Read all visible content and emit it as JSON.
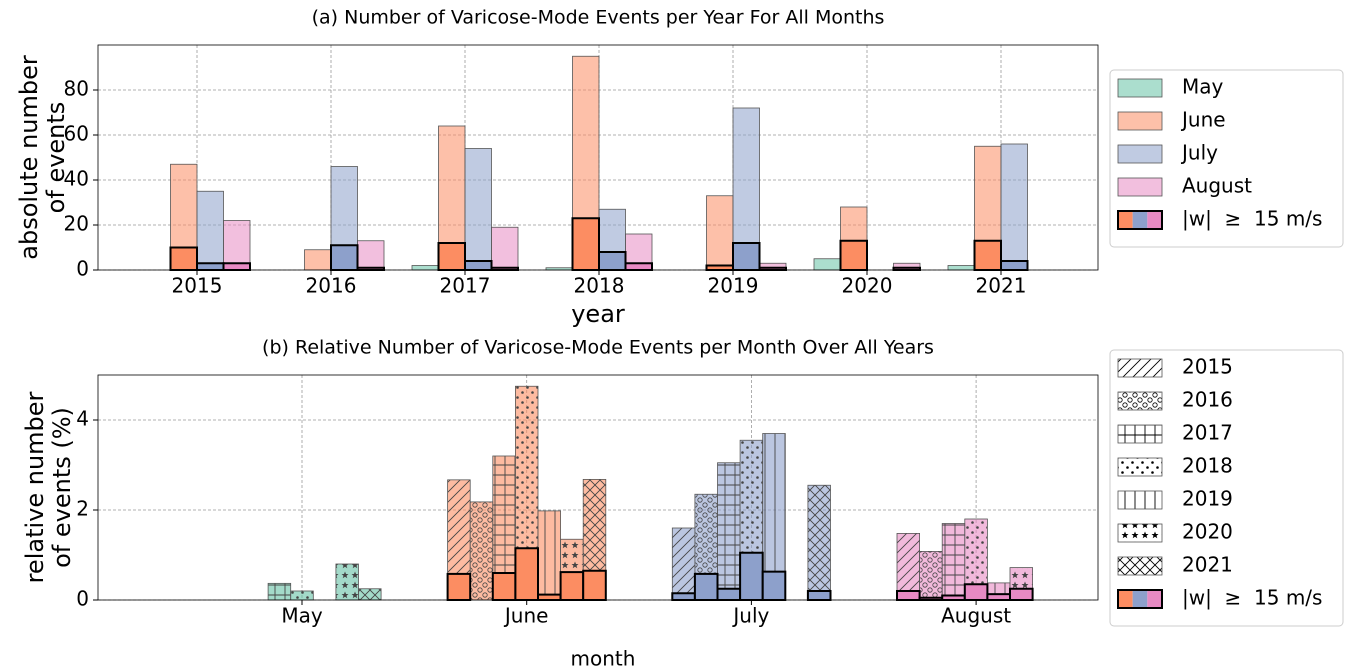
{
  "chart_data": [
    {
      "type": "bar",
      "title": "(a) Number of Varicose-Mode Events per Year For All Months",
      "xlabel": "year",
      "ylabel": [
        "absolute number",
        "of events"
      ],
      "categories": [
        "2015",
        "2016",
        "2017",
        "2018",
        "2019",
        "2020",
        "2021"
      ],
      "ylim": [
        0,
        100
      ],
      "yticks": [
        0,
        20,
        40,
        60,
        80
      ],
      "grid": true,
      "overlay_name": "|w|  ≥  15 m/s",
      "series": [
        {
          "name": "May",
          "color": "#66c2a5",
          "values": [
            0,
            0,
            2,
            1,
            0,
            5,
            2
          ],
          "overlay_values": [
            0,
            0,
            0,
            0,
            0,
            0,
            0
          ]
        },
        {
          "name": "June",
          "color": "#fc8d62",
          "values": [
            47,
            9,
            64,
            95,
            33,
            28,
            55
          ],
          "overlay_values": [
            10,
            0,
            12,
            23,
            2,
            13,
            13
          ]
        },
        {
          "name": "July",
          "color": "#8da0cb",
          "values": [
            35,
            46,
            54,
            27,
            72,
            0,
            56
          ],
          "overlay_values": [
            3,
            11,
            4,
            8,
            12,
            0,
            4
          ]
        },
        {
          "name": "August",
          "color": "#e78ac3",
          "values": [
            22,
            13,
            19,
            16,
            3,
            3,
            0
          ],
          "overlay_values": [
            3,
            1,
            1,
            3,
            1,
            1,
            0
          ]
        }
      ]
    },
    {
      "type": "hatched_bar",
      "title": "(b) Relative Number of Varicose-Mode Events per Month Over All Years",
      "xlabel": "month",
      "ylabel": [
        "relative number",
        "of events (%)"
      ],
      "categories": [
        "May",
        "June",
        "July",
        "August"
      ],
      "colors": [
        "#66c2a5",
        "#fc8d62",
        "#8da0cb",
        "#e78ac3"
      ],
      "ylim": [
        0,
        5
      ],
      "yticks": [
        0,
        2,
        4
      ],
      "grid": true,
      "overlay_name": "|w|  ≥  15 m/s",
      "series": [
        {
          "name": "2015",
          "hatch": "/",
          "values": [
            0,
            2.67,
            1.6,
            1.48
          ],
          "overlay_values": [
            0,
            0.58,
            0.15,
            0.2
          ]
        },
        {
          "name": "2016",
          "hatch": "o",
          "values": [
            0,
            2.18,
            2.35,
            1.08
          ],
          "overlay_values": [
            0,
            0,
            0.58,
            0.05
          ]
        },
        {
          "name": "2017",
          "hatch": "+",
          "values": [
            0.37,
            3.2,
            3.05,
            1.7
          ],
          "overlay_values": [
            0,
            0.6,
            0.25,
            0.1
          ]
        },
        {
          "name": "2018",
          "hatch": ".",
          "values": [
            0.2,
            4.75,
            3.55,
            1.8
          ],
          "overlay_values": [
            0,
            1.15,
            1.05,
            0.35
          ]
        },
        {
          "name": "2019",
          "hatch": "|",
          "values": [
            0,
            1.98,
            3.7,
            0.38
          ],
          "overlay_values": [
            0,
            0.12,
            0.63,
            0.13
          ]
        },
        {
          "name": "2020",
          "hatch": "*",
          "values": [
            0.8,
            1.35,
            0,
            0.72
          ],
          "overlay_values": [
            0,
            0.62,
            0,
            0.25
          ]
        },
        {
          "name": "2021",
          "hatch": "x",
          "values": [
            0.25,
            2.68,
            2.55,
            0
          ],
          "overlay_values": [
            0,
            0.65,
            0.2,
            0
          ]
        }
      ]
    }
  ]
}
